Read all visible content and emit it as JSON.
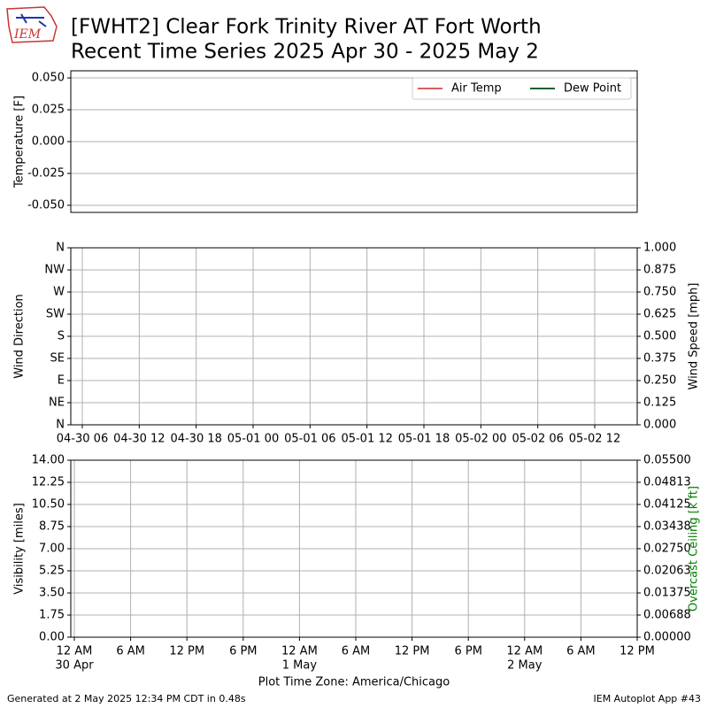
{
  "header": {
    "logo": "IEM",
    "title": "[FWHT2] Clear Fork Trinity River  AT Fort Worth",
    "subtitle": "Recent Time Series 2025 Apr 30 - 2025 May 2"
  },
  "footer": {
    "generated": "Generated at 2 May 2025 12:34 PM CDT in 0.48s",
    "app": "IEM Autoplot App #43"
  },
  "chart_data": [
    {
      "type": "line",
      "ylabel": "Temperature [F]",
      "grid": true,
      "legend": "upper right",
      "ylim": [
        -0.0556,
        0.0556
      ],
      "yticks": [
        {
          "value": 0.05,
          "label": "0.050"
        },
        {
          "value": 0.025,
          "label": "0.025"
        },
        {
          "value": 0,
          "label": "0.000"
        },
        {
          "value": -0.025,
          "label": "-0.025"
        },
        {
          "value": -0.05,
          "label": "-0.050"
        }
      ],
      "series": [
        {
          "name": "Air Temp",
          "color": "#d95f5f",
          "values": []
        },
        {
          "name": "Dew Point",
          "color": "#1f5f2a",
          "values": []
        }
      ]
    },
    {
      "type": "line",
      "ylabel": "Wind Direction",
      "y2label": "Wind Speed [mph]",
      "grid": true,
      "ylim": [
        0,
        360
      ],
      "yticks": [
        {
          "value": 0,
          "label": "N"
        },
        {
          "value": 45,
          "label": "NE"
        },
        {
          "value": 90,
          "label": "E"
        },
        {
          "value": 135,
          "label": "SE"
        },
        {
          "value": 180,
          "label": "S"
        },
        {
          "value": 225,
          "label": "SW"
        },
        {
          "value": 270,
          "label": "W"
        },
        {
          "value": 315,
          "label": "NW"
        },
        {
          "value": 360,
          "label": "N"
        }
      ],
      "y2lim": [
        0,
        1
      ],
      "y2ticks": [
        {
          "value": 0,
          "label": "0.000"
        },
        {
          "value": 0.125,
          "label": "0.125"
        },
        {
          "value": 0.25,
          "label": "0.250"
        },
        {
          "value": 0.375,
          "label": "0.375"
        },
        {
          "value": 0.5,
          "label": "0.500"
        },
        {
          "value": 0.625,
          "label": "0.625"
        },
        {
          "value": 0.75,
          "label": "0.750"
        },
        {
          "value": 0.875,
          "label": "0.875"
        },
        {
          "value": 1,
          "label": "1.000"
        }
      ],
      "xlim": [
        "2025-04-30T06:00",
        "2025-05-02T12:00"
      ],
      "xticks": [
        {
          "value": "2025-04-30T06:00",
          "label": "04-30 06"
        },
        {
          "value": "2025-04-30T12:00",
          "label": "04-30 12"
        },
        {
          "value": "2025-04-30T18:00",
          "label": "04-30 18"
        },
        {
          "value": "2025-05-01T00:00",
          "label": "05-01 00"
        },
        {
          "value": "2025-05-01T06:00",
          "label": "05-01 06"
        },
        {
          "value": "2025-05-01T12:00",
          "label": "05-01 12"
        },
        {
          "value": "2025-05-01T18:00",
          "label": "05-01 18"
        },
        {
          "value": "2025-05-02T00:00",
          "label": "05-02 00"
        },
        {
          "value": "2025-05-02T06:00",
          "label": "05-02 06"
        },
        {
          "value": "2025-05-02T12:00",
          "label": "05-02 12"
        }
      ]
    },
    {
      "type": "line",
      "ylabel": "Visibility [miles]",
      "y2label": "Overcast Ceiling [k ft]",
      "y2label_color": "#008000",
      "xlabel": "Plot Time Zone: America/Chicago",
      "grid": true,
      "ylim": [
        0,
        14
      ],
      "yticks": [
        {
          "value": 0,
          "label": "0.00"
        },
        {
          "value": 1.75,
          "label": "1.75"
        },
        {
          "value": 3.5,
          "label": "3.50"
        },
        {
          "value": 5.25,
          "label": "5.25"
        },
        {
          "value": 7,
          "label": "7.00"
        },
        {
          "value": 8.75,
          "label": "8.75"
        },
        {
          "value": 10.5,
          "label": "10.50"
        },
        {
          "value": 12.25,
          "label": "12.25"
        },
        {
          "value": 14,
          "label": "14.00"
        }
      ],
      "y2lim": [
        0,
        0.055
      ],
      "y2ticks": [
        {
          "value": 0,
          "label": "0.00000"
        },
        {
          "value": 0.00688,
          "label": "0.00688"
        },
        {
          "value": 0.01375,
          "label": "0.01375"
        },
        {
          "value": 0.02063,
          "label": "0.02063"
        },
        {
          "value": 0.0275,
          "label": "0.02750"
        },
        {
          "value": 0.03438,
          "label": "0.03438"
        },
        {
          "value": 0.04125,
          "label": "0.04125"
        },
        {
          "value": 0.04813,
          "label": "0.04813"
        },
        {
          "value": 0.055,
          "label": "0.05500"
        }
      ],
      "xlim": [
        "2025-04-30T00:00",
        "2025-05-02T12:00"
      ],
      "xticks": [
        {
          "value": "2025-04-30T00:00",
          "label": "12 AM",
          "date": "30 Apr"
        },
        {
          "value": "2025-04-30T06:00",
          "label": "6 AM"
        },
        {
          "value": "2025-04-30T12:00",
          "label": "12 PM"
        },
        {
          "value": "2025-04-30T18:00",
          "label": "6 PM"
        },
        {
          "value": "2025-05-01T00:00",
          "label": "12 AM",
          "date": "1 May"
        },
        {
          "value": "2025-05-01T06:00",
          "label": "6 AM"
        },
        {
          "value": "2025-05-01T12:00",
          "label": "12 PM"
        },
        {
          "value": "2025-05-01T18:00",
          "label": "6 PM"
        },
        {
          "value": "2025-05-02T00:00",
          "label": "12 AM",
          "date": "2 May"
        },
        {
          "value": "2025-05-02T06:00",
          "label": "6 AM"
        },
        {
          "value": "2025-05-02T12:00",
          "label": "12 PM"
        }
      ]
    }
  ]
}
